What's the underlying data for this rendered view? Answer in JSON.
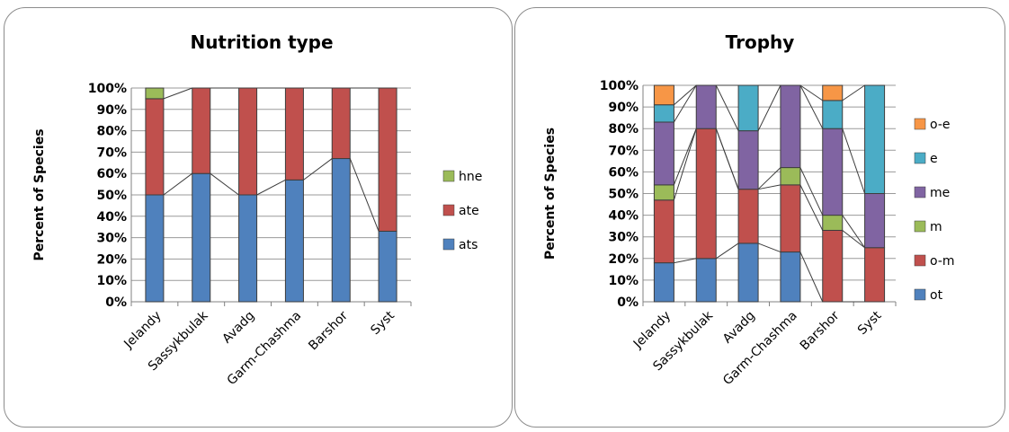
{
  "chart_data": [
    {
      "type": "bar",
      "stacked": true,
      "percent_stacked": true,
      "title": "Nutrition type",
      "ylabel": "Percent of Species",
      "xlabel": "",
      "ylim": [
        0,
        100
      ],
      "yticks": [
        "0%",
        "10%",
        "20%",
        "30%",
        "40%",
        "50%",
        "60%",
        "70%",
        "80%",
        "90%",
        "100%"
      ],
      "categories": [
        "Jelandy",
        "Sassykbulak",
        "Avadg",
        "Garm-Chashma",
        "Barshor",
        "Syst"
      ],
      "series": [
        {
          "name": "ats",
          "color": "#4f81bd",
          "values": [
            50,
            60,
            50,
            57,
            67,
            33
          ]
        },
        {
          "name": "ate",
          "color": "#c0504d",
          "values": [
            45,
            40,
            50,
            43,
            33,
            67
          ]
        },
        {
          "name": "hne",
          "color": "#9bbb59",
          "values": [
            5,
            0,
            0,
            0,
            0,
            0
          ]
        }
      ],
      "series_lines": true,
      "grid": true,
      "legend": "right"
    },
    {
      "type": "bar",
      "stacked": true,
      "percent_stacked": true,
      "title": "Trophy",
      "ylabel": "Percent of Species",
      "xlabel": "",
      "ylim": [
        0,
        100
      ],
      "yticks": [
        "0%",
        "10%",
        "20%",
        "30%",
        "40%",
        "50%",
        "60%",
        "70%",
        "80%",
        "90%",
        "100%"
      ],
      "categories": [
        "Jelandy",
        "Sassykbulak",
        "Avadg",
        "Garm-Chashma",
        "Barshor",
        "Syst"
      ],
      "series": [
        {
          "name": "ot",
          "color": "#4f81bd",
          "values": [
            18,
            20,
            27,
            23,
            0,
            0
          ]
        },
        {
          "name": "o-m",
          "color": "#c0504d",
          "values": [
            29,
            60,
            25,
            31,
            33,
            25
          ]
        },
        {
          "name": "m",
          "color": "#9bbb59",
          "values": [
            7,
            0,
            0,
            8,
            7,
            0
          ]
        },
        {
          "name": "me",
          "color": "#8064a2",
          "values": [
            29,
            20,
            27,
            38,
            40,
            25
          ]
        },
        {
          "name": "e",
          "color": "#4bacc6",
          "values": [
            8,
            0,
            21,
            0,
            13,
            50
          ]
        },
        {
          "name": "o-e",
          "color": "#f79646",
          "values": [
            9,
            0,
            0,
            0,
            7,
            0
          ]
        }
      ],
      "series_lines": true,
      "grid": true,
      "legend": "right"
    }
  ]
}
